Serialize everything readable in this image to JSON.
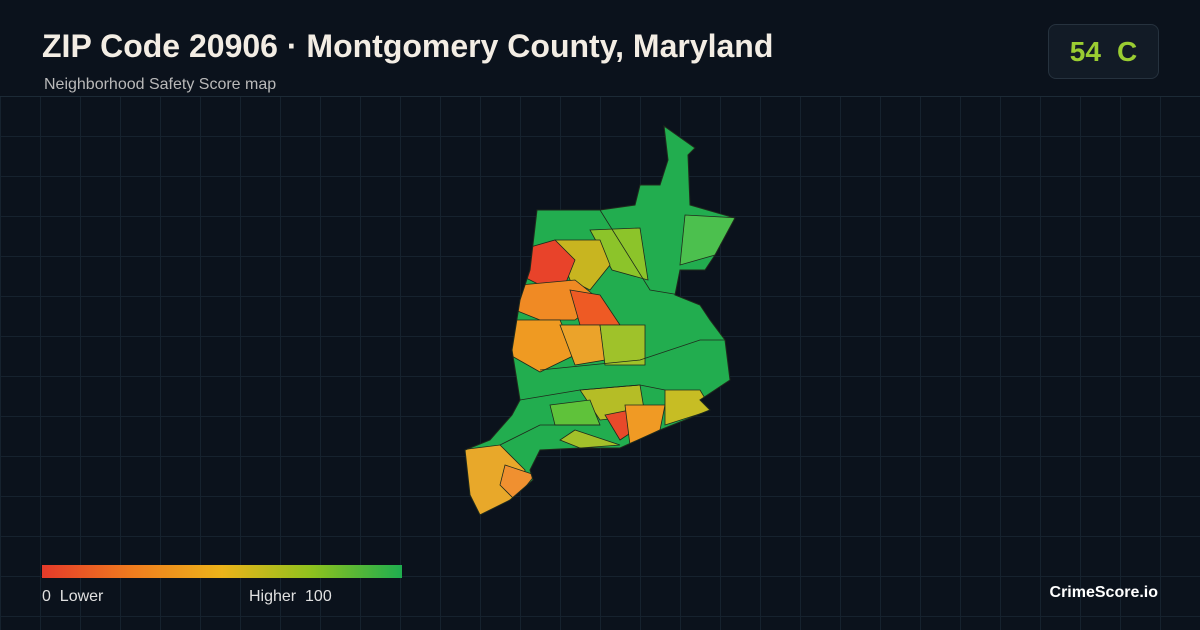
{
  "header": {
    "title": "ZIP Code 20906 · Montgomery County, Maryland",
    "subtitle": "Neighborhood Safety Score map"
  },
  "score": {
    "value": "54",
    "grade": "C"
  },
  "legend": {
    "min": 0,
    "min_label": "Lower",
    "max_label": "Higher",
    "max": 100
  },
  "brand": "CrimeScore.io"
}
